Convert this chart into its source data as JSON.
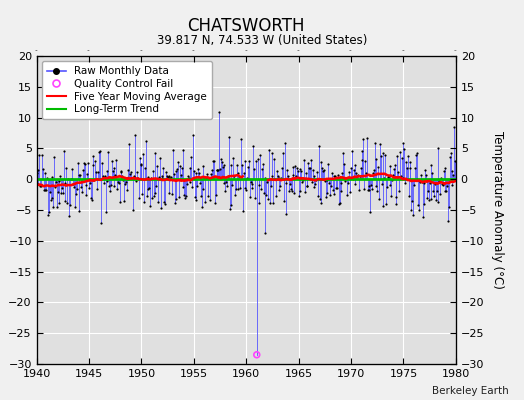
{
  "title": "CHATSWORTH",
  "subtitle": "39.817 N, 74.533 W (United States)",
  "credit": "Berkeley Earth",
  "ylabel": "Temperature Anomaly (°C)",
  "xlim": [
    1940,
    1980
  ],
  "ylim": [
    -30,
    20
  ],
  "yticks": [
    -30,
    -25,
    -20,
    -15,
    -10,
    -5,
    0,
    5,
    10,
    15,
    20
  ],
  "xticks": [
    1940,
    1945,
    1950,
    1955,
    1960,
    1965,
    1970,
    1975,
    1980
  ],
  "fig_bg_color": "#f0f0f0",
  "plot_bg_color": "#e0e0e0",
  "grid_color": "#ffffff",
  "raw_line_color": "#5555ff",
  "raw_dot_color": "#000000",
  "qc_fail_color": "#ff44ff",
  "moving_avg_color": "#ff0000",
  "trend_color": "#00bb00",
  "seed": 42,
  "noise_std": 2.8,
  "qc_year": 1961.08,
  "qc_value": -28.5
}
